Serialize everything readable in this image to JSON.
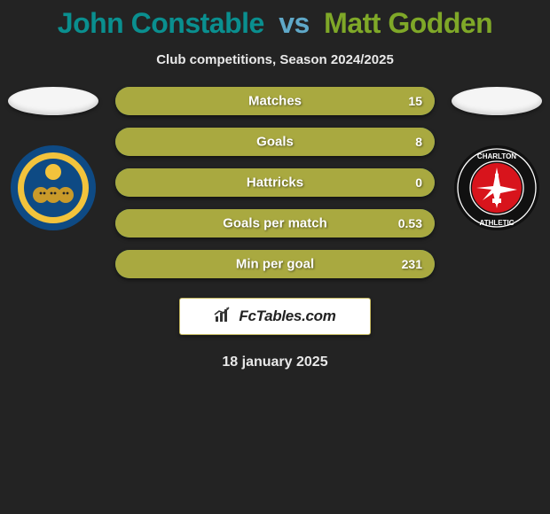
{
  "title": {
    "player1": "John Constable",
    "vs": "vs",
    "player2": "Matt Godden"
  },
  "subtitle": "Club competitions, Season 2024/2025",
  "date": "18 january 2025",
  "colors": {
    "left": "#0a8f8f",
    "right": "#a9a940",
    "title_p2": "#7fa828",
    "title_vs": "#5fa8c8",
    "bg": "#232323",
    "oval": "#f5f5f5"
  },
  "bars": [
    {
      "label": "Matches",
      "left": "",
      "right": "15",
      "left_pct": 0,
      "right_pct": 100
    },
    {
      "label": "Goals",
      "left": "",
      "right": "8",
      "left_pct": 0,
      "right_pct": 100
    },
    {
      "label": "Hattricks",
      "left": "",
      "right": "0",
      "left_pct": 0,
      "right_pct": 100
    },
    {
      "label": "Goals per match",
      "left": "",
      "right": "0.53",
      "left_pct": 0,
      "right_pct": 100
    },
    {
      "label": "Min per goal",
      "left": "",
      "right": "231",
      "left_pct": 0,
      "right_pct": 100
    }
  ],
  "branding": {
    "text": "FcTables.com"
  },
  "crests": {
    "left": {
      "name": "Shrewsbury Town",
      "outer_color": "#0e4a84",
      "mid_color": "#f2c33c",
      "inner_color": "#0e4a84",
      "center_color": "#f2c33c"
    },
    "right": {
      "name": "Charlton Athletic",
      "outer_color": "#111111",
      "ring_color": "#ffffff",
      "inner_color": "#d8141c",
      "sword_color": "#ffffff"
    }
  }
}
